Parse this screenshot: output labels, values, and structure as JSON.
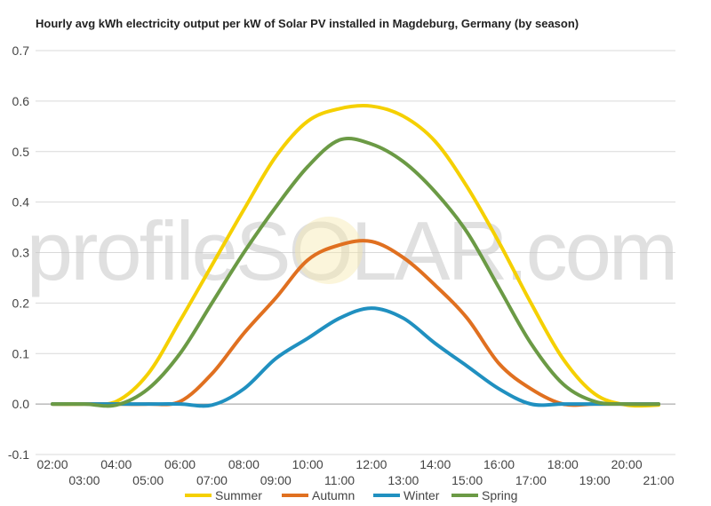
{
  "chart_data": {
    "type": "line",
    "title": "Hourly avg kWh electricity output per kW of Solar PV installed in Magdeburg, Germany (by season)",
    "watermark": "profileSOLAR.com",
    "xlabel": "",
    "ylabel": "",
    "x": [
      "02:00",
      "03:00",
      "04:00",
      "05:00",
      "06:00",
      "07:00",
      "08:00",
      "09:00",
      "10:00",
      "11:00",
      "12:00",
      "13:00",
      "14:00",
      "15:00",
      "16:00",
      "17:00",
      "18:00",
      "19:00",
      "20:00",
      "21:00"
    ],
    "ylim": [
      -0.1,
      0.7
    ],
    "yticks": [
      "-0.1",
      "0.0",
      "0.1",
      "0.2",
      "0.3",
      "0.4",
      "0.5",
      "0.6",
      "0.7"
    ],
    "grid": true,
    "legend": "bottom",
    "series": [
      {
        "name": "Summer",
        "color": "#f5d000",
        "values": [
          0.0,
          0.0,
          0.005,
          0.06,
          0.165,
          0.275,
          0.385,
          0.49,
          0.56,
          0.585,
          0.59,
          0.57,
          0.52,
          0.43,
          0.32,
          0.2,
          0.09,
          0.02,
          -0.002,
          -0.002
        ]
      },
      {
        "name": "Autumn",
        "color": "#e07020",
        "values": [
          0.0,
          0.0,
          0.0,
          0.0,
          0.005,
          0.06,
          0.14,
          0.21,
          0.285,
          0.315,
          0.322,
          0.29,
          0.235,
          0.17,
          0.08,
          0.03,
          0.0,
          0.0,
          0.0,
          0.0
        ]
      },
      {
        "name": "Winter",
        "color": "#2090c0",
        "values": [
          0.0,
          0.0,
          0.0,
          0.0,
          0.0,
          -0.002,
          0.03,
          0.09,
          0.13,
          0.17,
          0.19,
          0.17,
          0.12,
          0.075,
          0.03,
          0.0,
          0.0,
          0.0,
          0.0,
          0.0
        ]
      },
      {
        "name": "Spring",
        "color": "#6b9a45",
        "values": [
          0.0,
          0.0,
          -0.002,
          0.03,
          0.1,
          0.2,
          0.3,
          0.39,
          0.47,
          0.523,
          0.515,
          0.48,
          0.42,
          0.34,
          0.23,
          0.12,
          0.04,
          0.005,
          0.0,
          0.0
        ]
      }
    ]
  }
}
